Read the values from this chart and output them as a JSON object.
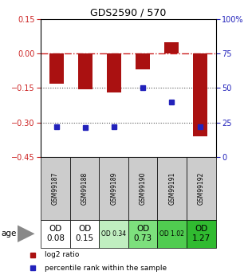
{
  "title": "GDS2590 / 570",
  "samples": [
    "GSM99187",
    "GSM99188",
    "GSM99189",
    "GSM99190",
    "GSM99191",
    "GSM99192"
  ],
  "log2_ratios": [
    -0.13,
    -0.155,
    -0.17,
    -0.07,
    0.05,
    -0.36
  ],
  "percentile_ranks": [
    22,
    21,
    22,
    50,
    40,
    22
  ],
  "ylim_left": [
    -0.45,
    0.15
  ],
  "ylim_right": [
    0,
    100
  ],
  "left_ticks": [
    0.15,
    0,
    -0.15,
    -0.3,
    -0.45
  ],
  "right_ticks": [
    100,
    75,
    50,
    25,
    0
  ],
  "age_labels": [
    "OD\n0.08",
    "OD\n0.15",
    "OD 0.34",
    "OD\n0.73",
    "OD 1.02",
    "OD\n1.27"
  ],
  "age_font_large": [
    true,
    true,
    false,
    true,
    false,
    true
  ],
  "age_colors": [
    "#ffffff",
    "#ffffff",
    "#c0eec0",
    "#7de07d",
    "#50cc50",
    "#30bb30"
  ],
  "bar_color": "#aa1111",
  "dot_color": "#2222bb",
  "sample_bg_color": "#cccccc",
  "zero_line_color": "#cc2222",
  "dotline_color": "#555555",
  "legend_red": "log2 ratio",
  "legend_blue": "percentile rank within the sample",
  "title_fontsize": 9
}
